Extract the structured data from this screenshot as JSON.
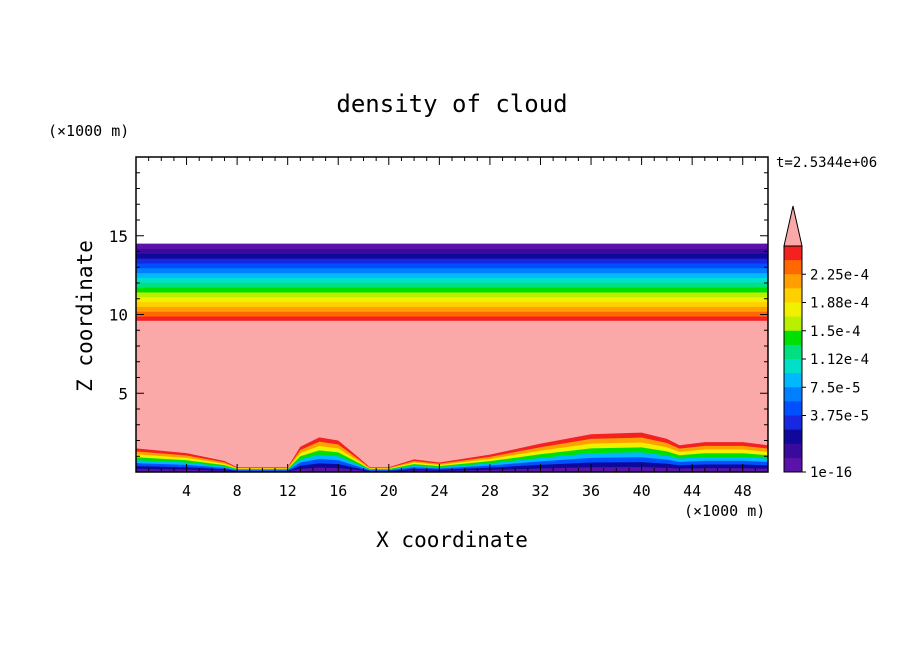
{
  "chart_data": {
    "type": "heatmap",
    "title": "density of cloud",
    "time_label": "t=2.5344e+06",
    "xlabel": "X coordinate",
    "ylabel": "Z coordinate",
    "x_unit": "(×1000 m)",
    "y_unit": "(×1000 m)",
    "xlim": [
      0,
      50
    ],
    "ylim": [
      0,
      20
    ],
    "x_ticks": [
      "4",
      "8",
      "12",
      "16",
      "20",
      "24",
      "28",
      "32",
      "36",
      "40",
      "44",
      "48"
    ],
    "x_tick_values": [
      4,
      8,
      12,
      16,
      20,
      24,
      28,
      32,
      36,
      40,
      44,
      48
    ],
    "y_ticks": [
      "5",
      "10",
      "15"
    ],
    "y_tick_values": [
      5,
      10,
      15
    ],
    "colorbar": {
      "labels": [
        "2.25e-4",
        "1.88e-4",
        "1.5e-4",
        "1.12e-4",
        "7.5e-5",
        "3.75e-5",
        "1e-16"
      ],
      "colors": [
        "#F52020",
        "#FF6800",
        "#FFA000",
        "#FFD000",
        "#F0F000",
        "#B8F000",
        "#00E000",
        "#00E080",
        "#00E0C8",
        "#00B8FF",
        "#0080FF",
        "#0050FF",
        "#1828E0",
        "#10089A",
        "#3A0A9C",
        "#5A12A8"
      ],
      "over_color": "#FAA8A8"
    },
    "field": {
      "cloud_top": 14.5,
      "saturated_top": 9.6,
      "bottom_layer_top_profile": [
        [
          0,
          1.5
        ],
        [
          4,
          1.2
        ],
        [
          7,
          0.7
        ],
        [
          8,
          0.3
        ],
        [
          12,
          0.3
        ],
        [
          13,
          1.6
        ],
        [
          14.5,
          2.2
        ],
        [
          16,
          2.0
        ],
        [
          17.5,
          1.0
        ],
        [
          18.5,
          0.3
        ],
        [
          20,
          0.3
        ],
        [
          22,
          0.8
        ],
        [
          24,
          0.6
        ],
        [
          28,
          1.1
        ],
        [
          32,
          1.8
        ],
        [
          36,
          2.4
        ],
        [
          40,
          2.5
        ],
        [
          42,
          2.1
        ],
        [
          43,
          1.7
        ],
        [
          45,
          1.9
        ],
        [
          48,
          1.9
        ],
        [
          50,
          1.7
        ]
      ]
    }
  }
}
